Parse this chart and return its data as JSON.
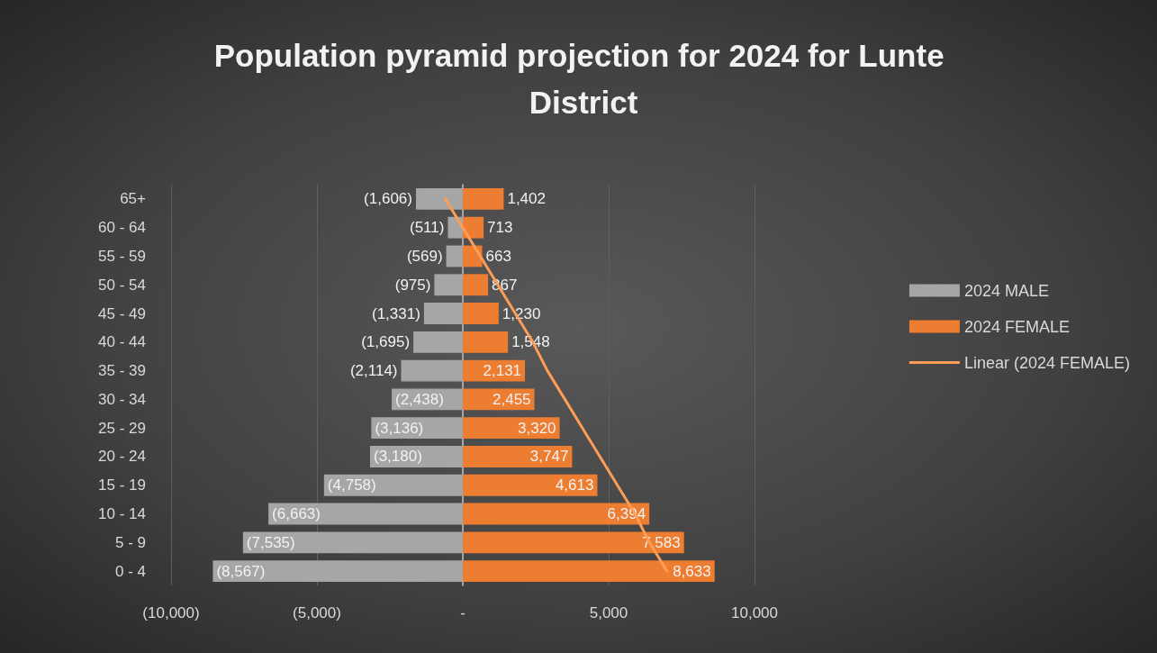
{
  "chart_data": {
    "type": "bar",
    "orientation": "horizontal",
    "title": "Population pyramid projection for 2024 for Lunte District",
    "categories": [
      "65+",
      "60 - 64",
      "55 - 59",
      "50 - 54",
      "45 - 49",
      "40 - 44",
      "35 - 39",
      "30 - 34",
      "25 - 29",
      "20 - 24",
      "15 - 19",
      "10 - 14",
      "5 - 9",
      "0 - 4"
    ],
    "series": [
      {
        "name": "2024 MALE",
        "color": "#a6a6a6",
        "values": [
          -1606,
          -511,
          -569,
          -975,
          -1331,
          -1695,
          -2114,
          -2438,
          -3136,
          -3180,
          -4758,
          -6663,
          -7535,
          -8567
        ],
        "value_labels": [
          "(1,606)",
          "(511)",
          "(569)",
          "(975)",
          "(1,331)",
          "(1,695)",
          "(2,114)",
          "(2,438)",
          "(3,136)",
          "(3,180)",
          "(4,758)",
          "(6,663)",
          "(7,535)",
          "(8,567)"
        ]
      },
      {
        "name": "2024 FEMALE",
        "color": "#ed7d31",
        "values": [
          1402,
          713,
          663,
          867,
          1230,
          1548,
          2131,
          2455,
          3320,
          3747,
          4613,
          6394,
          7583,
          8633
        ],
        "value_labels": [
          "1,402",
          "713",
          "663",
          "867",
          "1,230",
          "1,548",
          "2,131",
          "2,455",
          "3,320",
          "3,747",
          "4,613",
          "6,394",
          "7,583",
          "8,633"
        ]
      },
      {
        "name": "Linear (2024 FEMALE)",
        "type": "line",
        "color": "#ff9d57",
        "values": [
          -600,
          0,
          600,
          1200,
          1800,
          2400,
          2900,
          3500,
          4100,
          4700,
          5300,
          5900,
          6400,
          7000
        ]
      }
    ],
    "xlim": [
      -10000,
      10000
    ],
    "xticks": [
      {
        "value": -10000,
        "label": "(10,000)"
      },
      {
        "value": -5000,
        "label": "(5,000)"
      },
      {
        "value": 0,
        "label": "-"
      },
      {
        "value": 5000,
        "label": "5,000"
      },
      {
        "value": 10000,
        "label": "10,000"
      }
    ],
    "grid": "x",
    "legend": "right",
    "stacked": true,
    "marker": "none",
    "line_style": "solid"
  }
}
